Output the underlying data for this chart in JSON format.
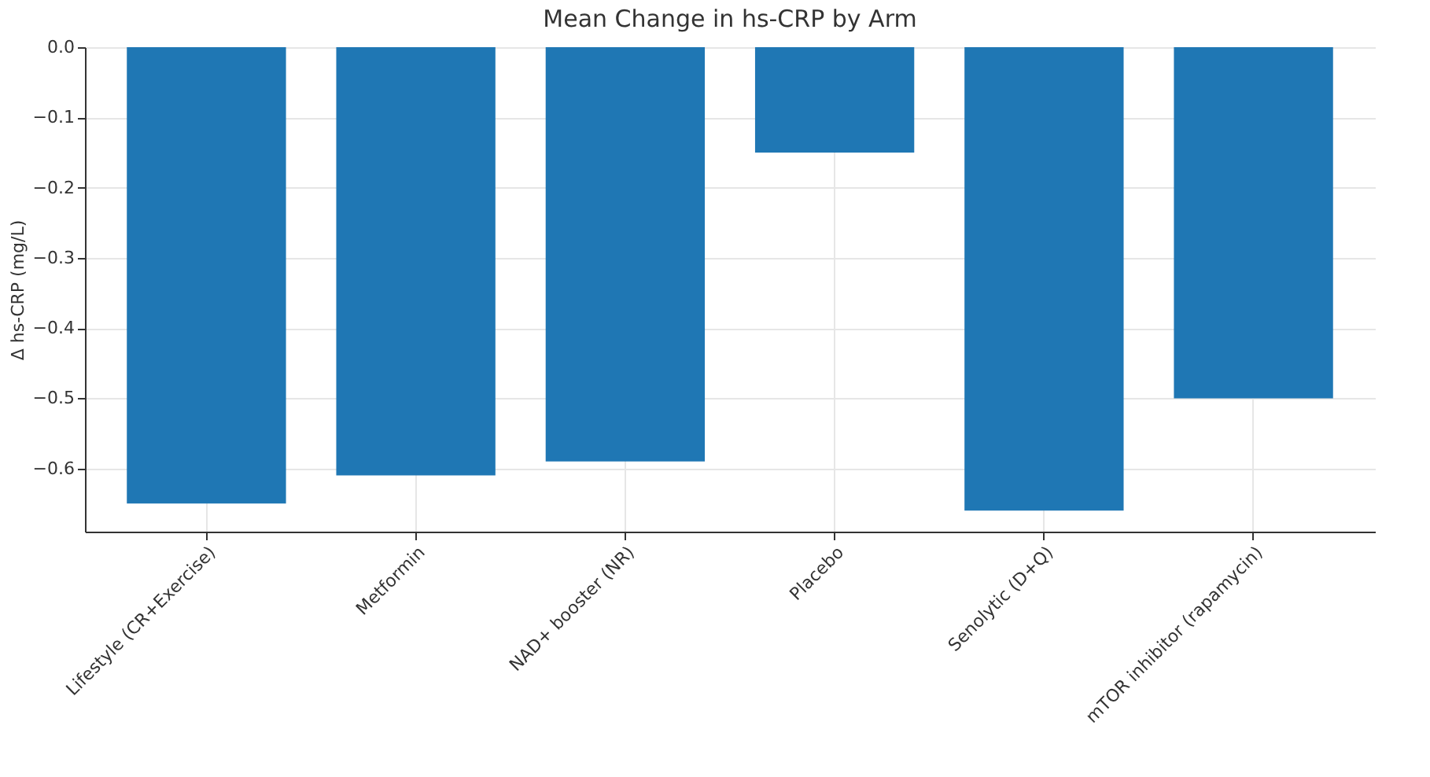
{
  "chart_data": {
    "type": "bar",
    "title": "Mean Change in hs-CRP by Arm",
    "ylabel": "Δ hs-CRP (mg/L)",
    "categories": [
      "Lifestyle (CR+Exercise)",
      "Metformin",
      "NAD+ booster (NR)",
      "Placebo",
      "Senolytic (D+Q)",
      "mTOR inhibitor (rapamycin)"
    ],
    "values": [
      -0.65,
      -0.61,
      -0.59,
      -0.15,
      -0.66,
      -0.5
    ],
    "color": "#1f77b4",
    "ylim": [
      -0.69,
      0
    ],
    "yticks": [
      {
        "value": 0,
        "label": "0.0"
      },
      {
        "value": -0.1,
        "label": "−0.1"
      },
      {
        "value": -0.2,
        "label": "−0.2"
      },
      {
        "value": -0.3,
        "label": "−0.3"
      },
      {
        "value": -0.4,
        "label": "−0.4"
      },
      {
        "value": -0.5,
        "label": "−0.5"
      },
      {
        "value": -0.6,
        "label": "−0.6"
      }
    ],
    "grid": true
  }
}
